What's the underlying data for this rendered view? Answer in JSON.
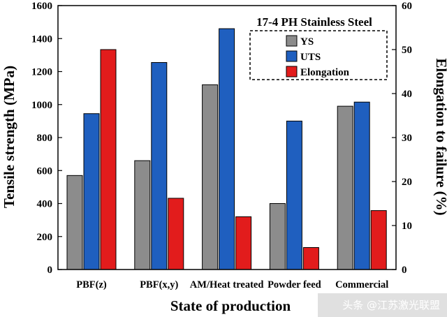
{
  "chart_data": {
    "type": "bar",
    "title": "17-4 PH Stainless Steel",
    "xlabel": "State of production",
    "ylabel": "Tensile strength (MPa)",
    "y2label": "Elongation to failure (%)",
    "categories": [
      "PBF(z)",
      "PBF(x,y)",
      "AM/Heat treated",
      "Powder feed",
      "Commercial"
    ],
    "ylim": [
      0,
      1600
    ],
    "yticks": [
      0,
      200,
      400,
      600,
      800,
      1000,
      1200,
      1400,
      1600
    ],
    "y2lim": [
      0,
      60
    ],
    "y2ticks": [
      0,
      10,
      20,
      30,
      40,
      50,
      60
    ],
    "series": [
      {
        "name": "YS",
        "axis": "left",
        "color": "#8c8c8c",
        "values": [
          570,
          660,
          1120,
          400,
          990
        ]
      },
      {
        "name": "UTS",
        "axis": "left",
        "color": "#1f5fbf",
        "values": [
          945,
          1255,
          1460,
          900,
          1015
        ]
      },
      {
        "name": "Elongation",
        "axis": "right",
        "color": "#e21c1c",
        "values": [
          50,
          16.2,
          12,
          5,
          13.4
        ]
      }
    ],
    "legend_position": "top-right",
    "grid": false
  },
  "watermark": "头条 @江苏激光联盟"
}
